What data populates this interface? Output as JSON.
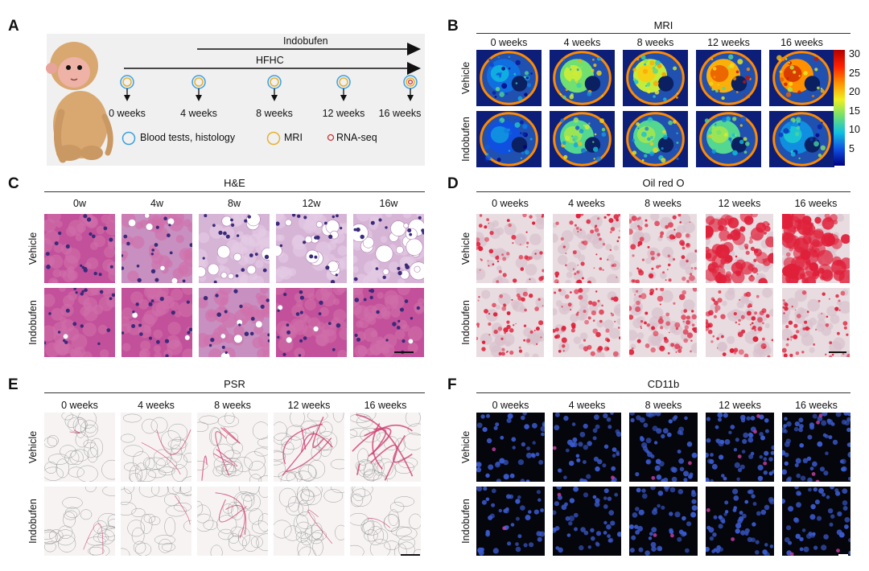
{
  "panelA": {
    "letter": "A",
    "arrow_labels": [
      "Indobufen",
      "HFHC"
    ],
    "timepoints": [
      "0 weeks",
      "4 weeks",
      "8 weeks",
      "12 weeks",
      "16 weeks"
    ],
    "legend": [
      "Blood tests, histology",
      "MRI",
      "RNA-seq"
    ],
    "colors": {
      "blood": "#3aa0e0",
      "mri": "#e8b030",
      "rna": "#d03030",
      "bg": "#f0f0f0"
    }
  },
  "panelB": {
    "letter": "B",
    "title": "MRI",
    "columns": [
      "0 weeks",
      "4 weeks",
      "8 weeks",
      "12 weeks",
      "16 weeks"
    ],
    "rows": [
      "Vehicle",
      "Indobufen"
    ],
    "colorbar_ticks": [
      "30",
      "25",
      "20",
      "15",
      "10",
      "5"
    ],
    "scan_levels": [
      [
        0.25,
        0.55,
        0.65,
        0.8,
        0.85
      ],
      [
        0.2,
        0.5,
        0.5,
        0.5,
        0.3
      ]
    ]
  },
  "panelC": {
    "letter": "C",
    "title": "H&E",
    "columns": [
      "0w",
      "4w",
      "8w",
      "12w",
      "16w"
    ],
    "rows": [
      "Vehicle",
      "Indobufen"
    ],
    "steatosis": [
      [
        0.0,
        0.35,
        0.6,
        0.8,
        0.95
      ],
      [
        0.05,
        0.1,
        0.3,
        0.15,
        0.05
      ]
    ]
  },
  "panelD": {
    "letter": "D",
    "title": "Oil red O",
    "columns": [
      "0 weeks",
      "4 weeks",
      "8 weeks",
      "12 weeks",
      "16 weeks"
    ],
    "rows": [
      "Vehicle",
      "Indobufen"
    ],
    "lipid": [
      [
        0.25,
        0.35,
        0.55,
        0.75,
        0.95
      ],
      [
        0.3,
        0.4,
        0.5,
        0.45,
        0.25
      ]
    ]
  },
  "panelE": {
    "letter": "E",
    "title": "PSR",
    "columns": [
      "0 weeks",
      "4 weeks",
      "8 weeks",
      "12 weeks",
      "16 weeks"
    ],
    "rows": [
      "Vehicle",
      "Indobufen"
    ],
    "fibrosis": [
      [
        0.05,
        0.15,
        0.35,
        0.55,
        0.8
      ],
      [
        0.05,
        0.1,
        0.3,
        0.1,
        0.05
      ]
    ]
  },
  "panelF": {
    "letter": "F",
    "title": "CD11b",
    "columns": [
      "0 weeks",
      "4 weeks",
      "8 weeks",
      "12 weeks",
      "16 weeks"
    ],
    "rows": [
      "Vehicle",
      "Indobufen"
    ],
    "positivity": [
      [
        0.1,
        0.3,
        0.4,
        0.6,
        0.7
      ],
      [
        0.1,
        0.2,
        0.3,
        0.35,
        0.3
      ]
    ]
  }
}
